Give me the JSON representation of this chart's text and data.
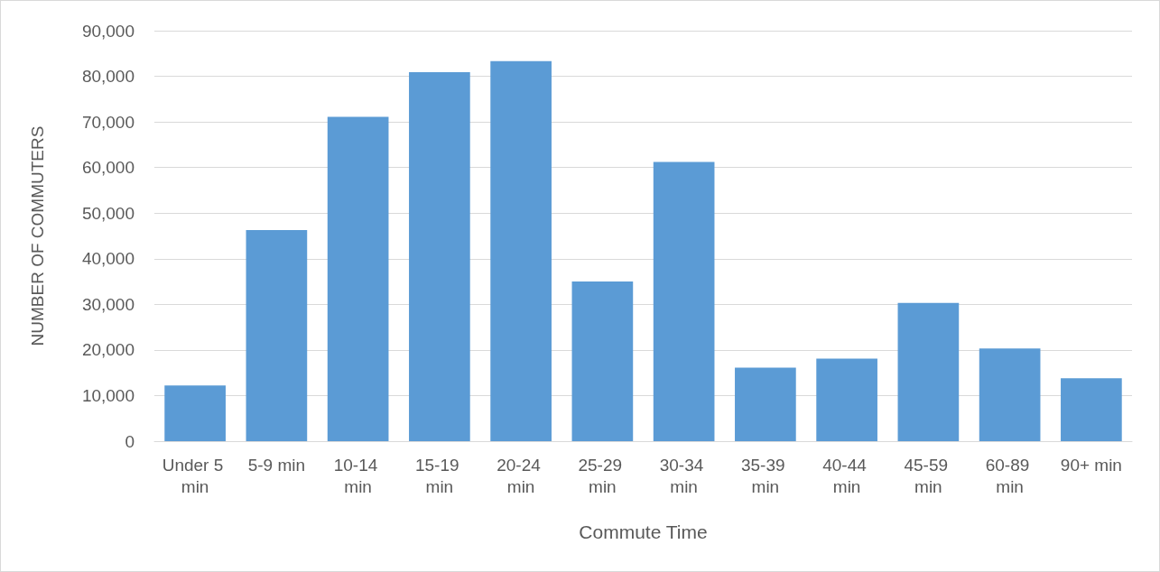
{
  "chart_data": {
    "type": "bar",
    "xlabel": "Commute Time",
    "ylabel": "NUMBER OF COMMUTERS",
    "categories": [
      "Under 5 min",
      "5-9 min",
      "10-14 min",
      "15-19 min",
      "20-24 min",
      "25-29 min",
      "30-34 min",
      "35-39 min",
      "40-44 min",
      "45-59 min",
      "60-89 min",
      "90+ min"
    ],
    "values": [
      12200,
      46300,
      71100,
      80900,
      83300,
      35000,
      61200,
      16100,
      18100,
      30300,
      20300,
      13800
    ],
    "color": "#5b9bd5",
    "ylim": [
      0,
      90000
    ],
    "yticks": [
      {
        "value": 0,
        "label": "0"
      },
      {
        "value": 10000,
        "label": "10,000"
      },
      {
        "value": 20000,
        "label": "20,000"
      },
      {
        "value": 30000,
        "label": "30,000"
      },
      {
        "value": 40000,
        "label": "40,000"
      },
      {
        "value": 50000,
        "label": "50,000"
      },
      {
        "value": 60000,
        "label": "60,000"
      },
      {
        "value": 70000,
        "label": "70,000"
      },
      {
        "value": 80000,
        "label": "80,000"
      },
      {
        "value": 90000,
        "label": "90,000"
      }
    ],
    "grid": "y"
  }
}
